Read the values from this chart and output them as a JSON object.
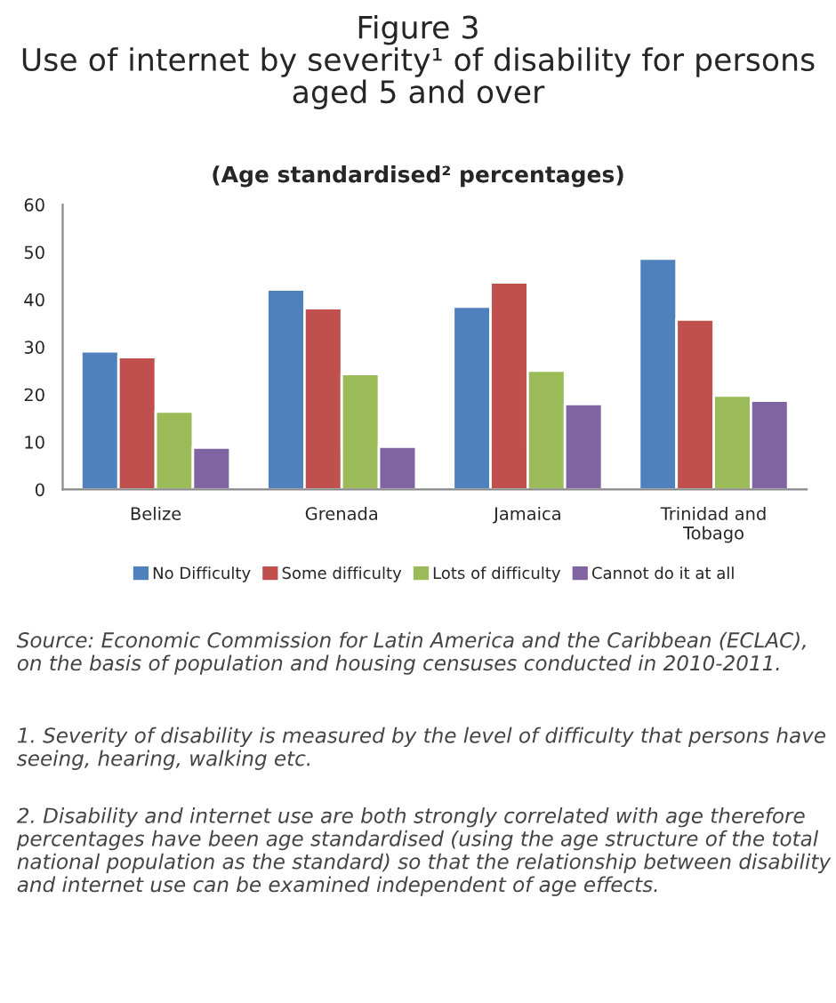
{
  "chart_data": {
    "type": "bar",
    "title": "Figure 3\nUse of internet by severity¹ of disability for persons aged 5 and over",
    "subtitle": "(Age standardised² percentages)",
    "categories": [
      "Belize",
      "Grenada",
      "Jamaica",
      "Trinidad and Tobago"
    ],
    "series": [
      {
        "name": "No Difficulty",
        "color": "#4f81bd",
        "values": [
          29.1,
          42.1,
          38.5,
          48.6
        ]
      },
      {
        "name": "Some difficulty",
        "color": "#c0504d",
        "values": [
          27.9,
          38.2,
          43.6,
          35.8
        ]
      },
      {
        "name": "Lots of difficulty",
        "color": "#9bbb59",
        "values": [
          16.4,
          24.3,
          25.0,
          19.8
        ]
      },
      {
        "name": "Cannot do it at all",
        "color": "#8064a2",
        "values": [
          8.8,
          9.0,
          18.0,
          18.7
        ]
      }
    ],
    "ylim": [
      0,
      60
    ],
    "yticks": [
      0,
      10,
      20,
      30,
      40,
      50,
      60
    ],
    "grid": false,
    "legend": "bottom",
    "annotations": [
      "Source: Economic Commission for Latin America and the Caribbean (ECLAC), on the basis of population and housing censuses conducted in 2010-2011.",
      "1. Severity of disability is measured by the level of difficulty that persons have seeing, hearing, walking etc.",
      "2. Disability and internet use are both strongly correlated with age therefore percentages have been age standardised (using the age structure of the total national population as the standard) so that the relationship between disability and internet use can be examined independent of age effects."
    ]
  }
}
